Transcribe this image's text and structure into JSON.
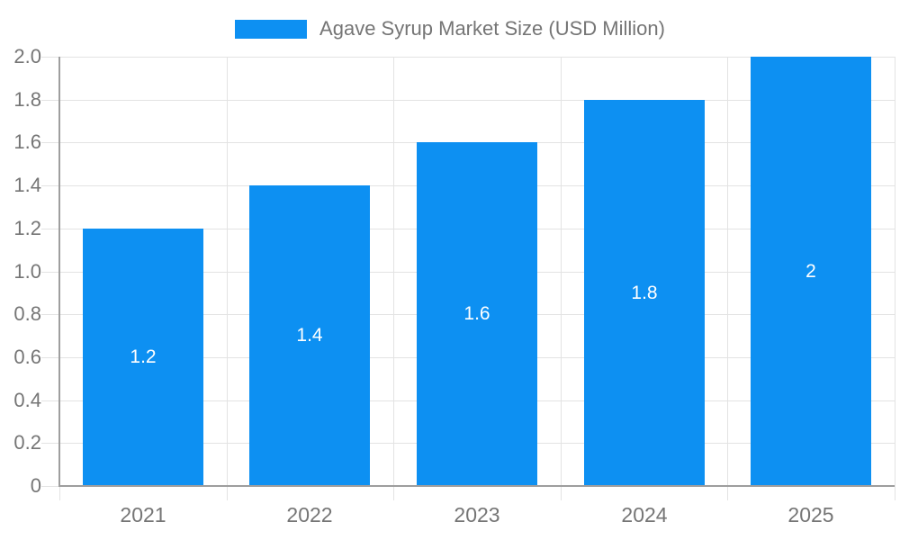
{
  "chart_data": {
    "type": "bar",
    "title": "Agave Syrup Market Size (USD Million)",
    "categories": [
      "2021",
      "2022",
      "2023",
      "2024",
      "2025"
    ],
    "series": [
      {
        "name": "Agave Syrup Market Size (USD Million)",
        "values": [
          1.2,
          1.4,
          1.6,
          1.8,
          2
        ],
        "value_labels": [
          "1.2",
          "1.4",
          "1.6",
          "1.8",
          "2"
        ]
      }
    ],
    "xlabel": "",
    "ylabel": "",
    "ylim": [
      0,
      2.0
    ],
    "ytick_step": 0.2,
    "ytick_labels": [
      "0",
      "0.2",
      "0.4",
      "0.6",
      "0.8",
      "1.0",
      "1.2",
      "1.4",
      "1.6",
      "1.8",
      "2.0"
    ],
    "grid": true,
    "legend_position": "top-center",
    "colors": {
      "bar": "#0d90f2",
      "axis_text": "#757575",
      "annotation_text": "#ffffff",
      "grid_line": "#e3e3e3",
      "axis_line": "#9e9e9e",
      "background": "#ffffff"
    }
  }
}
